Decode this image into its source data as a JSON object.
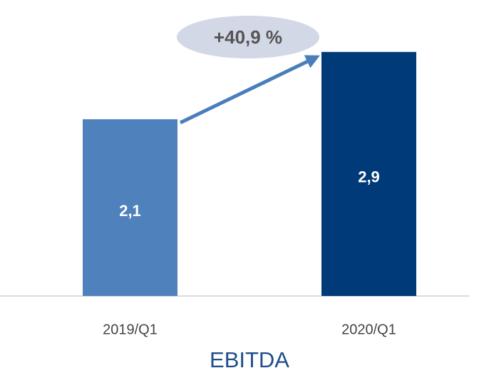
{
  "chart_data": {
    "type": "bar",
    "title": "EBITDA",
    "categories": [
      "2019/Q1",
      "2020/Q1"
    ],
    "values": [
      2.1,
      2.9
    ],
    "value_labels": [
      "2,1",
      "2,9"
    ],
    "colors": [
      "#4f81bd",
      "#003a78"
    ],
    "ylim": [
      0,
      3
    ],
    "annotation": "+40,9 %"
  }
}
